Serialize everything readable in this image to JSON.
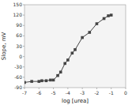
{
  "chart_data": {
    "type": "line",
    "x": [
      -7,
      -6.5,
      -6,
      -5.8,
      -5.5,
      -5.2,
      -5,
      -4.7,
      -4.5,
      -4.2,
      -4,
      -3.7,
      -3.5,
      -3,
      -2.5,
      -2,
      -1.5,
      -1.2,
      -1
    ],
    "series": [
      {
        "color": "#444444",
        "marker": "square",
        "values": [
          -75,
          -72,
          -72,
          -70,
          -70,
          -68,
          -68,
          -55,
          -45,
          -20,
          -10,
          10,
          20,
          55,
          70,
          95,
          110,
          118,
          120
        ]
      }
    ],
    "xlabel": "log [urea]",
    "ylabel": "Slope, mV",
    "xlim": [
      -7,
      0
    ],
    "ylim": [
      -90,
      150
    ],
    "xticks": [
      -7,
      -6,
      -5,
      -4,
      -3,
      -2,
      -1,
      0
    ],
    "yticks": [
      -90,
      -60,
      -30,
      0,
      30,
      60,
      90,
      120,
      150
    ],
    "grid": false
  }
}
